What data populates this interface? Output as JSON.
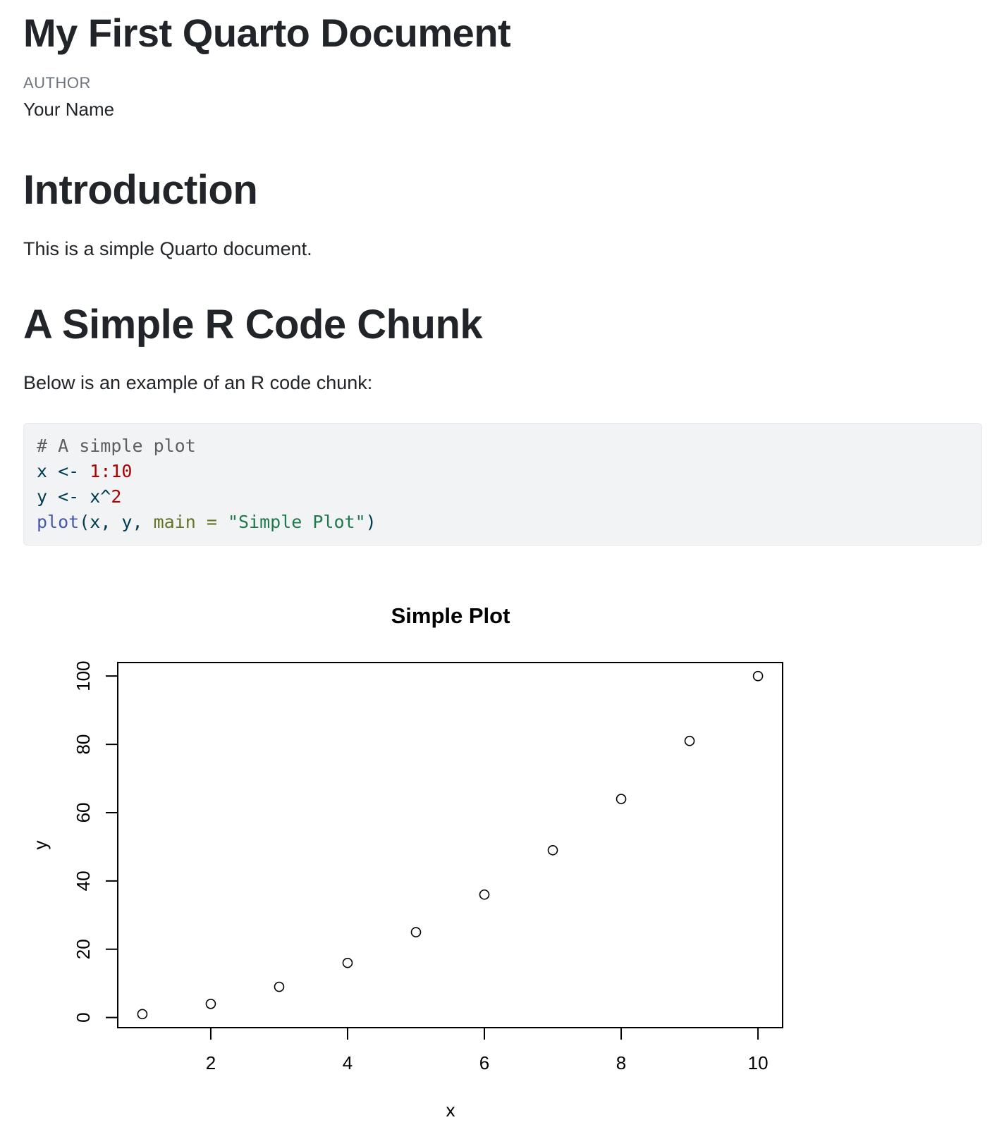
{
  "document": {
    "title": "My First Quarto Document",
    "author_label": "Author",
    "author_name": "Your Name"
  },
  "sections": {
    "introduction": {
      "heading": "Introduction",
      "text": "This is a simple Quarto document."
    },
    "code_chunk": {
      "heading": "A Simple R Code Chunk",
      "text": "Below is an example of an R code chunk:"
    }
  },
  "code": {
    "line1": {
      "comment": "# A simple plot"
    },
    "line2": {
      "a": "x <- ",
      "b": "1:10"
    },
    "line3": {
      "a": "y <- x^",
      "b": "2"
    },
    "line4": {
      "fn": "plot",
      "a": "(x, y, ",
      "arg": "main =",
      "b": " ",
      "str": "\"Simple Plot\"",
      "c": ")"
    }
  },
  "chart_data": {
    "type": "scatter",
    "title": "Simple Plot",
    "xlabel": "x",
    "ylabel": "y",
    "x": [
      1,
      2,
      3,
      4,
      5,
      6,
      7,
      8,
      9,
      10
    ],
    "y": [
      1,
      4,
      9,
      16,
      25,
      36,
      49,
      64,
      81,
      100
    ],
    "x_ticks": [
      2,
      4,
      6,
      8,
      10
    ],
    "y_ticks": [
      0,
      20,
      40,
      60,
      80,
      100
    ],
    "xlim": [
      0.64,
      10.36
    ],
    "ylim": [
      -2.96,
      103.96
    ],
    "marker": "open-circle",
    "grid": false
  },
  "colors": {
    "text": "#212529",
    "muted": "#6c757d",
    "code_background": "#f1f3f5",
    "code_default": "#003b4f",
    "code_comment": "#5e5e5e",
    "code_number": "#ad0000",
    "code_function": "#4758ab",
    "code_argument": "#657422",
    "code_string": "#20794d"
  }
}
